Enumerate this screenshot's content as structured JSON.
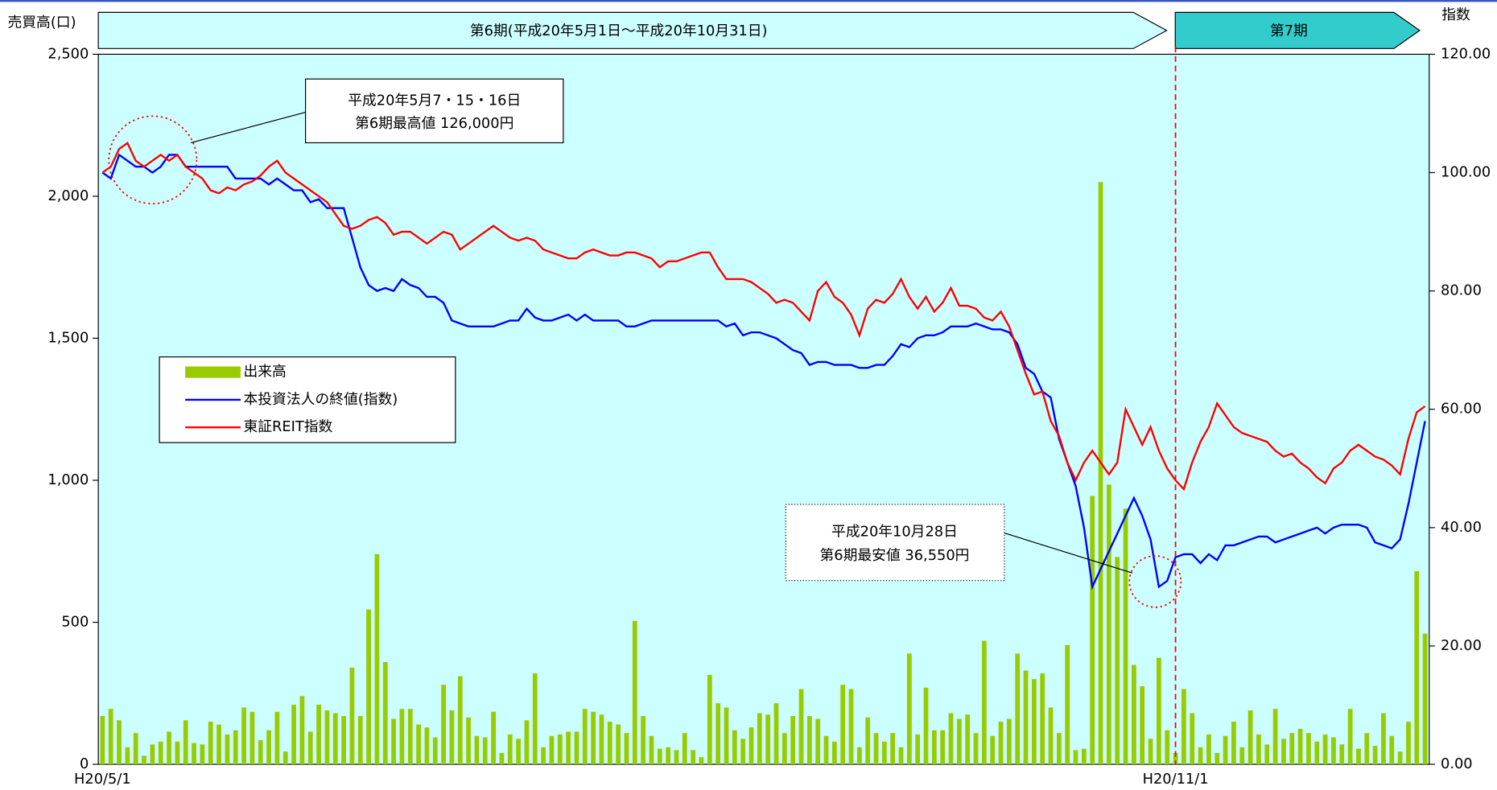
{
  "chart_data": {
    "type": "bar_line",
    "y_label": "売買高(口)",
    "y2_label": "指数",
    "periods": [
      "第6期(平成20年5月1日～平成20年10月31日)",
      "第7期"
    ],
    "annotations": [
      {
        "lines": [
          "平成20年5月7・15・16日",
          "第6期最高値 126,000円"
        ]
      },
      {
        "lines": [
          "平成20年10月28日",
          "第6期最安値 36,550円"
        ]
      }
    ],
    "legend": "left",
    "categories": [
      "H20/5/1",
      null,
      null,
      null,
      null,
      null,
      null,
      null,
      null,
      null,
      null,
      null,
      null,
      null,
      null,
      null,
      null,
      null,
      null,
      null,
      null,
      null,
      null,
      null,
      null,
      null,
      null,
      null,
      null,
      null,
      null,
      null,
      null,
      null,
      null,
      null,
      null,
      null,
      null,
      null,
      null,
      null,
      null,
      null,
      null,
      null,
      null,
      null,
      null,
      null,
      null,
      null,
      null,
      null,
      null,
      null,
      null,
      null,
      null,
      null,
      null,
      null,
      null,
      null,
      null,
      null,
      null,
      null,
      null,
      null,
      null,
      null,
      null,
      null,
      null,
      null,
      null,
      null,
      null,
      null,
      null,
      null,
      null,
      null,
      null,
      null,
      null,
      null,
      null,
      null,
      null,
      null,
      null,
      null,
      null,
      null,
      null,
      null,
      null,
      null,
      null,
      null,
      null,
      null,
      null,
      null,
      null,
      null,
      null,
      null,
      null,
      null,
      null,
      null,
      null,
      null,
      null,
      null,
      null,
      null,
      null,
      null,
      null,
      null,
      null,
      null,
      null,
      null,
      null,
      "H20/11/1",
      null,
      null,
      null,
      null,
      null,
      null,
      null,
      null,
      null,
      null,
      null,
      null,
      null,
      null,
      null,
      null,
      null,
      null,
      null,
      null,
      null,
      null,
      null,
      null,
      null,
      null,
      null,
      null,
      null,
      null
    ],
    "series": [
      {
        "name": "出来高",
        "type": "bar",
        "color": "#99cc00",
        "values": [
          170,
          195,
          155,
          60,
          110,
          30,
          70,
          80,
          115,
          80,
          155,
          75,
          70,
          150,
          140,
          105,
          120,
          200,
          185,
          85,
          120,
          185,
          45,
          210,
          240,
          115,
          210,
          190,
          180,
          170,
          340,
          170,
          545,
          740,
          360,
          160,
          195,
          195,
          140,
          130,
          95,
          280,
          190,
          310,
          165,
          100,
          95,
          185,
          40,
          105,
          90,
          155,
          320,
          60,
          100,
          105,
          115,
          115,
          195,
          185,
          175,
          150,
          140,
          110,
          505,
          170,
          100,
          55,
          60,
          50,
          110,
          50,
          25,
          315,
          215,
          200,
          120,
          90,
          130,
          180,
          175,
          215,
          110,
          170,
          265,
          170,
          160,
          100,
          80,
          280,
          265,
          60,
          165,
          110,
          80,
          110,
          60,
          390,
          105,
          270,
          120,
          120,
          180,
          160,
          175,
          110,
          435,
          100,
          150,
          160,
          390,
          330,
          300,
          320,
          200,
          110,
          420,
          50,
          55,
          945,
          2050,
          985,
          730,
          900,
          350,
          275,
          90,
          375,
          120,
          40,
          265,
          180,
          60,
          105,
          40,
          100,
          150,
          60,
          190,
          105,
          70,
          195,
          90,
          110,
          125,
          110,
          80,
          105,
          95,
          70,
          195,
          55,
          110,
          65,
          180,
          100,
          45,
          150,
          680,
          460
        ]
      },
      {
        "name": "本投資法人の終値(指数)",
        "type": "line",
        "axis": "y2",
        "color": "#0000ff",
        "values": [
          100,
          99,
          103,
          102,
          101,
          101,
          100,
          101,
          103,
          103,
          101,
          101,
          101,
          101,
          101,
          101,
          99,
          99,
          99,
          99,
          98,
          99,
          98,
          97,
          97,
          95,
          95.5,
          94,
          94,
          94,
          89,
          84,
          81,
          80,
          80.5,
          80,
          82,
          81,
          80.5,
          79,
          79,
          78,
          75,
          74.5,
          74,
          74,
          74,
          74,
          74.5,
          75,
          75,
          77,
          75.5,
          75,
          75,
          75.5,
          76,
          75,
          76,
          75,
          75,
          75,
          75,
          74,
          74,
          74.5,
          75,
          75,
          75,
          75,
          75,
          75,
          75,
          75,
          75,
          74,
          74.5,
          72.5,
          73,
          73,
          72.5,
          72,
          71,
          70,
          69.5,
          67.5,
          68,
          68,
          67.5,
          67.5,
          67.5,
          67,
          67,
          67.5,
          67.5,
          69,
          71,
          70.5,
          72,
          72.5,
          72.5,
          73,
          74,
          74,
          74,
          74.5,
          74,
          73.5,
          73.5,
          73,
          71,
          67,
          66,
          63,
          62,
          55,
          51,
          47,
          40,
          30,
          33,
          36,
          39,
          42,
          45,
          42,
          38,
          30,
          31,
          35,
          35.5,
          35.5,
          34,
          35.5,
          34.5,
          37,
          37,
          37.5,
          38,
          38.5,
          38.5,
          37.5,
          38,
          38.5,
          39,
          39.5,
          40,
          39,
          40,
          40.5,
          40.5,
          40.5,
          40,
          37.5,
          37,
          36.5,
          38,
          44,
          51,
          58
        ]
      },
      {
        "name": "東証REIT指数",
        "type": "line",
        "axis": "y2",
        "color": "#ff0000",
        "values": [
          100,
          101,
          104,
          105,
          102,
          101,
          102,
          103,
          102,
          103,
          101,
          100,
          99,
          97,
          96.5,
          97.5,
          97,
          98,
          98.5,
          99.5,
          101,
          102,
          100,
          99,
          98,
          97,
          96,
          95,
          93,
          91,
          90.5,
          91,
          92,
          92.5,
          91.5,
          89.5,
          90,
          90,
          89,
          88,
          89,
          90,
          89.5,
          87,
          88,
          89,
          90,
          91,
          90,
          89,
          88.5,
          89,
          88.5,
          87,
          86.5,
          86,
          85.5,
          85.5,
          86.5,
          87,
          86.5,
          86,
          86,
          86.5,
          86.5,
          86,
          85.5,
          84,
          85,
          85,
          85.5,
          86,
          86.5,
          86.5,
          84,
          82,
          82,
          82,
          81.5,
          80.5,
          79.5,
          78,
          78.5,
          78,
          76.5,
          75,
          80,
          81.5,
          79,
          78,
          76,
          72.5,
          77,
          78.5,
          78,
          79.5,
          82,
          79,
          77,
          79,
          76.5,
          78,
          80.5,
          77.5,
          77.5,
          77,
          75.5,
          75,
          76.5,
          74,
          70,
          66,
          62.5,
          63,
          58,
          55.5,
          51,
          48,
          51,
          53,
          51,
          49,
          51,
          60,
          57,
          54,
          57,
          53,
          50,
          48,
          46.5,
          51,
          54.5,
          57,
          61,
          59,
          57,
          56,
          55.5,
          55,
          54.5,
          53,
          52,
          52.5,
          51,
          50,
          48.5,
          47.5,
          50,
          51,
          53,
          54,
          53,
          52,
          51.5,
          50.5,
          49,
          55,
          59.5,
          60.5
        ]
      }
    ],
    "ylim": [
      0,
      2500
    ],
    "yticks": [
      0,
      500,
      {
        "value": 1000,
        "label": "1,000"
      },
      {
        "value": 1500,
        "label": "1,500"
      },
      {
        "value": 2000,
        "label": "2,000"
      },
      {
        "value": 2500,
        "label": "2,500"
      }
    ],
    "y2lim": [
      0,
      120
    ],
    "y2ticks": [
      {
        "value": 0,
        "label": "0.00"
      },
      {
        "value": 20,
        "label": "20.00"
      },
      {
        "value": 40,
        "label": "40.00"
      },
      {
        "value": 60,
        "label": "60.00"
      },
      {
        "value": 80,
        "label": "80.00"
      },
      {
        "value": 100,
        "label": "100.00"
      },
      {
        "value": 120,
        "label": "120.00"
      }
    ],
    "plot_background": "#ccffff"
  }
}
